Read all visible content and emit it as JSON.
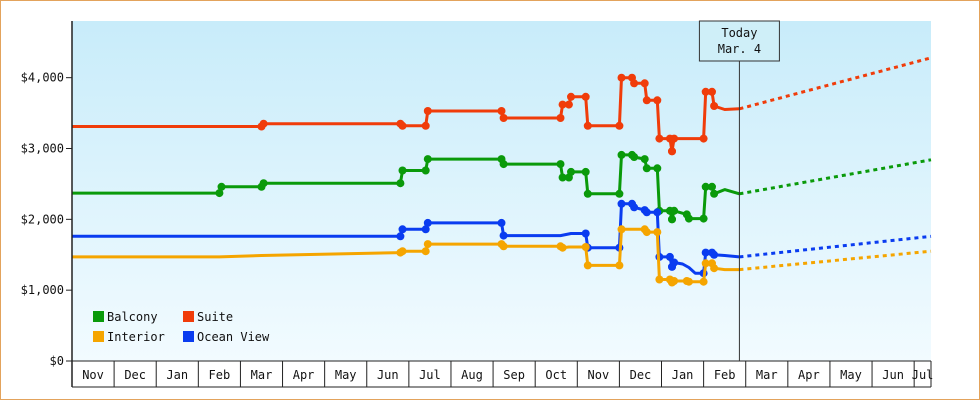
{
  "chart_data": {
    "type": "line",
    "y_ticks": [
      "$0",
      "$1,000",
      "$2,000",
      "$3,000",
      "$4,000"
    ],
    "ylim": [
      0,
      4800
    ],
    "months": [
      "Nov",
      "Dec",
      "Jan",
      "Feb",
      "Mar",
      "Apr",
      "May",
      "Jun",
      "Jul",
      "Aug",
      "Sep",
      "Oct",
      "Nov",
      "Dec",
      "Jan",
      "Feb",
      "Mar",
      "Apr",
      "May",
      "Jun",
      "Jul"
    ],
    "x_range_months": [
      0,
      20.4
    ],
    "today": {
      "label_line1": "Today",
      "label_line2": "Mar. 4",
      "x": 15.85
    },
    "legend": [
      {
        "name": "Balcony",
        "color": "#0a9a0a"
      },
      {
        "name": "Suite",
        "color": "#f03c0a"
      },
      {
        "name": "Interior",
        "color": "#f5a500"
      },
      {
        "name": "Ocean View",
        "color": "#0a3cf0"
      }
    ],
    "series": [
      {
        "name": "Suite",
        "color": "#f03c0a",
        "values": [
          [
            0,
            3310
          ],
          [
            4.5,
            3310
          ],
          [
            4.55,
            3350
          ],
          [
            7.8,
            3350
          ],
          [
            7.85,
            3320
          ],
          [
            8.4,
            3320
          ],
          [
            8.45,
            3530
          ],
          [
            10.2,
            3530
          ],
          [
            10.25,
            3430
          ],
          [
            11.6,
            3430
          ],
          [
            11.65,
            3620
          ],
          [
            11.8,
            3620
          ],
          [
            11.85,
            3730
          ],
          [
            12.2,
            3730
          ],
          [
            12.25,
            3320
          ],
          [
            13,
            3320
          ],
          [
            13.05,
            4000
          ],
          [
            13.3,
            4000
          ],
          [
            13.35,
            3920
          ],
          [
            13.6,
            3920
          ],
          [
            13.65,
            3680
          ],
          [
            13.9,
            3680
          ],
          [
            13.95,
            3140
          ],
          [
            14.2,
            3140
          ],
          [
            14.25,
            2960
          ],
          [
            14.3,
            3140
          ],
          [
            15,
            3140
          ],
          [
            15.05,
            3800
          ],
          [
            15.2,
            3800
          ],
          [
            15.25,
            3600
          ],
          [
            15.5,
            3550
          ],
          [
            15.85,
            3560
          ]
        ],
        "forecast": [
          [
            15.85,
            3560
          ],
          [
            20.4,
            4280
          ]
        ]
      },
      {
        "name": "Balcony",
        "color": "#0a9a0a",
        "values": [
          [
            0,
            2370
          ],
          [
            3.5,
            2370
          ],
          [
            3.55,
            2460
          ],
          [
            4.5,
            2460
          ],
          [
            4.55,
            2510
          ],
          [
            7.8,
            2510
          ],
          [
            7.85,
            2690
          ],
          [
            8.4,
            2690
          ],
          [
            8.45,
            2850
          ],
          [
            10.2,
            2850
          ],
          [
            10.25,
            2780
          ],
          [
            11.6,
            2780
          ],
          [
            11.65,
            2590
          ],
          [
            11.8,
            2590
          ],
          [
            11.85,
            2670
          ],
          [
            12.2,
            2670
          ],
          [
            12.25,
            2360
          ],
          [
            13,
            2360
          ],
          [
            13.05,
            2910
          ],
          [
            13.3,
            2910
          ],
          [
            13.35,
            2880
          ],
          [
            13.6,
            2850
          ],
          [
            13.65,
            2720
          ],
          [
            13.9,
            2720
          ],
          [
            13.95,
            2120
          ],
          [
            14.2,
            2120
          ],
          [
            14.25,
            2000
          ],
          [
            14.3,
            2120
          ],
          [
            14.6,
            2070
          ],
          [
            14.65,
            2010
          ],
          [
            15,
            2010
          ],
          [
            15.05,
            2460
          ],
          [
            15.2,
            2460
          ],
          [
            15.25,
            2360
          ],
          [
            15.5,
            2420
          ],
          [
            15.85,
            2360
          ]
        ],
        "forecast": [
          [
            15.85,
            2360
          ],
          [
            20.4,
            2840
          ]
        ]
      },
      {
        "name": "Ocean View",
        "color": "#0a3cf0",
        "values": [
          [
            0,
            1760
          ],
          [
            3.5,
            1760
          ],
          [
            4.5,
            1760
          ],
          [
            7.8,
            1760
          ],
          [
            7.85,
            1860
          ],
          [
            8.4,
            1860
          ],
          [
            8.45,
            1950
          ],
          [
            10.2,
            1950
          ],
          [
            10.25,
            1770
          ],
          [
            11.6,
            1770
          ],
          [
            11.85,
            1800
          ],
          [
            12.2,
            1800
          ],
          [
            12.25,
            1600
          ],
          [
            13,
            1600
          ],
          [
            13.05,
            2220
          ],
          [
            13.3,
            2220
          ],
          [
            13.35,
            2170
          ],
          [
            13.6,
            2130
          ],
          [
            13.65,
            2100
          ],
          [
            13.9,
            2100
          ],
          [
            13.95,
            1470
          ],
          [
            14.2,
            1470
          ],
          [
            14.25,
            1330
          ],
          [
            14.3,
            1390
          ],
          [
            14.5,
            1370
          ],
          [
            14.65,
            1320
          ],
          [
            14.8,
            1240
          ],
          [
            15,
            1240
          ],
          [
            15.05,
            1530
          ],
          [
            15.2,
            1530
          ],
          [
            15.25,
            1500
          ],
          [
            15.5,
            1490
          ],
          [
            15.85,
            1470
          ]
        ],
        "forecast": [
          [
            15.85,
            1470
          ],
          [
            20.4,
            1760
          ]
        ]
      },
      {
        "name": "Interior",
        "color": "#f5a500",
        "values": [
          [
            0,
            1470
          ],
          [
            3.5,
            1470
          ],
          [
            4.5,
            1490
          ],
          [
            7.8,
            1530
          ],
          [
            7.85,
            1550
          ],
          [
            8.4,
            1550
          ],
          [
            8.45,
            1650
          ],
          [
            10.2,
            1650
          ],
          [
            10.25,
            1620
          ],
          [
            11.6,
            1620
          ],
          [
            11.65,
            1600
          ],
          [
            11.8,
            1610
          ],
          [
            12.2,
            1610
          ],
          [
            12.25,
            1350
          ],
          [
            13,
            1350
          ],
          [
            13.05,
            1860
          ],
          [
            13.6,
            1860
          ],
          [
            13.65,
            1820
          ],
          [
            13.9,
            1820
          ],
          [
            13.95,
            1150
          ],
          [
            14.2,
            1150
          ],
          [
            14.25,
            1110
          ],
          [
            14.3,
            1130
          ],
          [
            14.6,
            1130
          ],
          [
            14.65,
            1120
          ],
          [
            15,
            1120
          ],
          [
            15.05,
            1380
          ],
          [
            15.2,
            1380
          ],
          [
            15.25,
            1310
          ],
          [
            15.5,
            1290
          ],
          [
            15.85,
            1290
          ]
        ],
        "forecast": [
          [
            15.85,
            1290
          ],
          [
            20.4,
            1550
          ]
        ]
      }
    ]
  }
}
